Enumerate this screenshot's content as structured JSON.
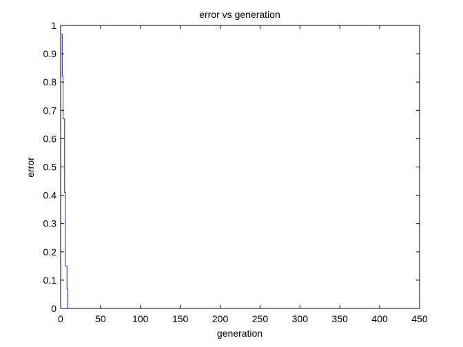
{
  "colors": {
    "line": "#1f1fbf",
    "axes": "#000000",
    "background": "#ffffff"
  },
  "chart_data": {
    "type": "line",
    "title": "error vs generation",
    "xlabel": "generation",
    "ylabel": "error",
    "xlim": [
      0,
      450
    ],
    "ylim": [
      0,
      1
    ],
    "grid": false,
    "xticks": [
      0,
      50,
      100,
      150,
      200,
      250,
      300,
      350,
      400,
      450
    ],
    "yticks": [
      0,
      0.1,
      0.2,
      0.3,
      0.4,
      0.5,
      0.6,
      0.7,
      0.8,
      0.9,
      1
    ],
    "xtick_labels": [
      "0",
      "50",
      "100",
      "150",
      "200",
      "250",
      "300",
      "350",
      "400",
      "450"
    ],
    "ytick_labels": [
      "0",
      "0.1",
      "0.2",
      "0.3",
      "0.4",
      "0.5",
      "0.6",
      "0.7",
      "0.8",
      "0.9",
      "1"
    ],
    "series": [
      {
        "name": "error",
        "step": true,
        "x": [
          1,
          2,
          3,
          4,
          5,
          6,
          7,
          8,
          9
        ],
        "y": [
          0.97,
          0.82,
          0.67,
          0.67,
          0.41,
          0.15,
          0.15,
          0.07,
          0
        ]
      }
    ]
  }
}
